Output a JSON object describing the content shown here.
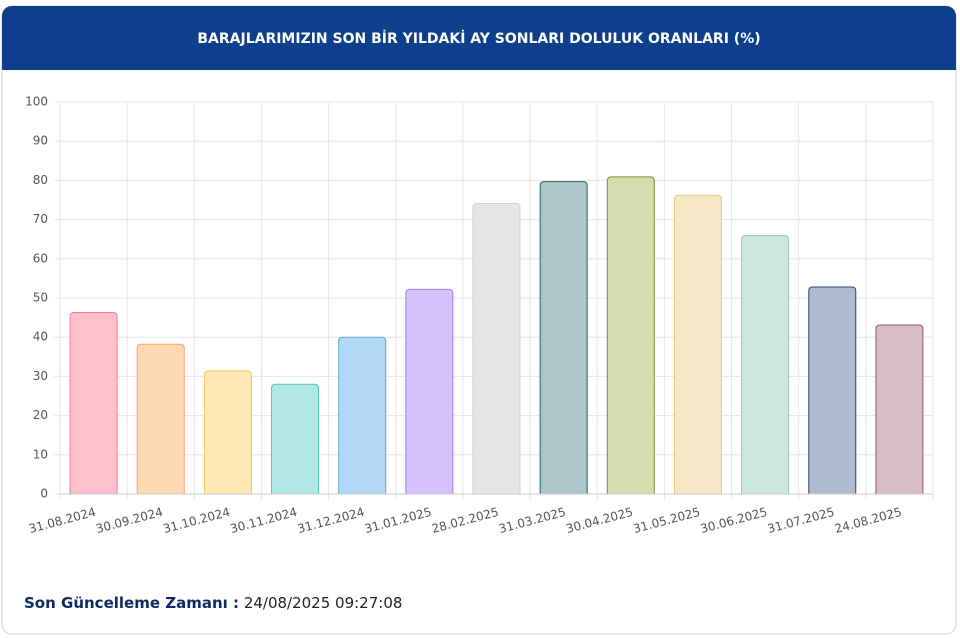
{
  "chart_data": {
    "type": "bar",
    "title": "BARAJLARIMIZIN SON BİR YILDAKİ AY SONLARI DOLULUK ORANLARI (%)",
    "categories": [
      "31.08.2024",
      "30.09.2024",
      "31.10.2024",
      "30.11.2024",
      "31.12.2024",
      "31.01.2025",
      "28.02.2025",
      "31.03.2025",
      "30.04.2025",
      "31.05.2025",
      "30.06.2025",
      "31.07.2025",
      "24.08.2025"
    ],
    "values": [
      46.3,
      38.2,
      31.4,
      28.0,
      40.0,
      52.2,
      74.1,
      79.7,
      80.9,
      76.2,
      65.9,
      52.8,
      43.1
    ],
    "colors": [
      "#ffc0ce",
      "#ffd9b3",
      "#fde8b3",
      "#b2e8e4",
      "#b0d8f6",
      "#d5c1fb",
      "#e6e6e8",
      "#adc6ca",
      "#d6dcb0",
      "#f6e8c6",
      "#cbe7df",
      "#adbcd1",
      "#d6bcc6"
    ],
    "border_colors": [
      "#f27a98",
      "#f2a766",
      "#f0c860",
      "#55c2b8",
      "#5aa9e0",
      "#a77af5",
      "#cfcfd4",
      "#2f5e66",
      "#7d8a35",
      "#e6c97a",
      "#8fcab6",
      "#33476e",
      "#8a5a6c"
    ],
    "ylim": [
      0,
      100
    ],
    "yticks": [
      0,
      10,
      20,
      30,
      40,
      50,
      60,
      70,
      80,
      90,
      100
    ],
    "grid": true
  },
  "footer": {
    "label": "Son Güncelleme Zamanı :",
    "value": "24/08/2025 09:27:08"
  }
}
